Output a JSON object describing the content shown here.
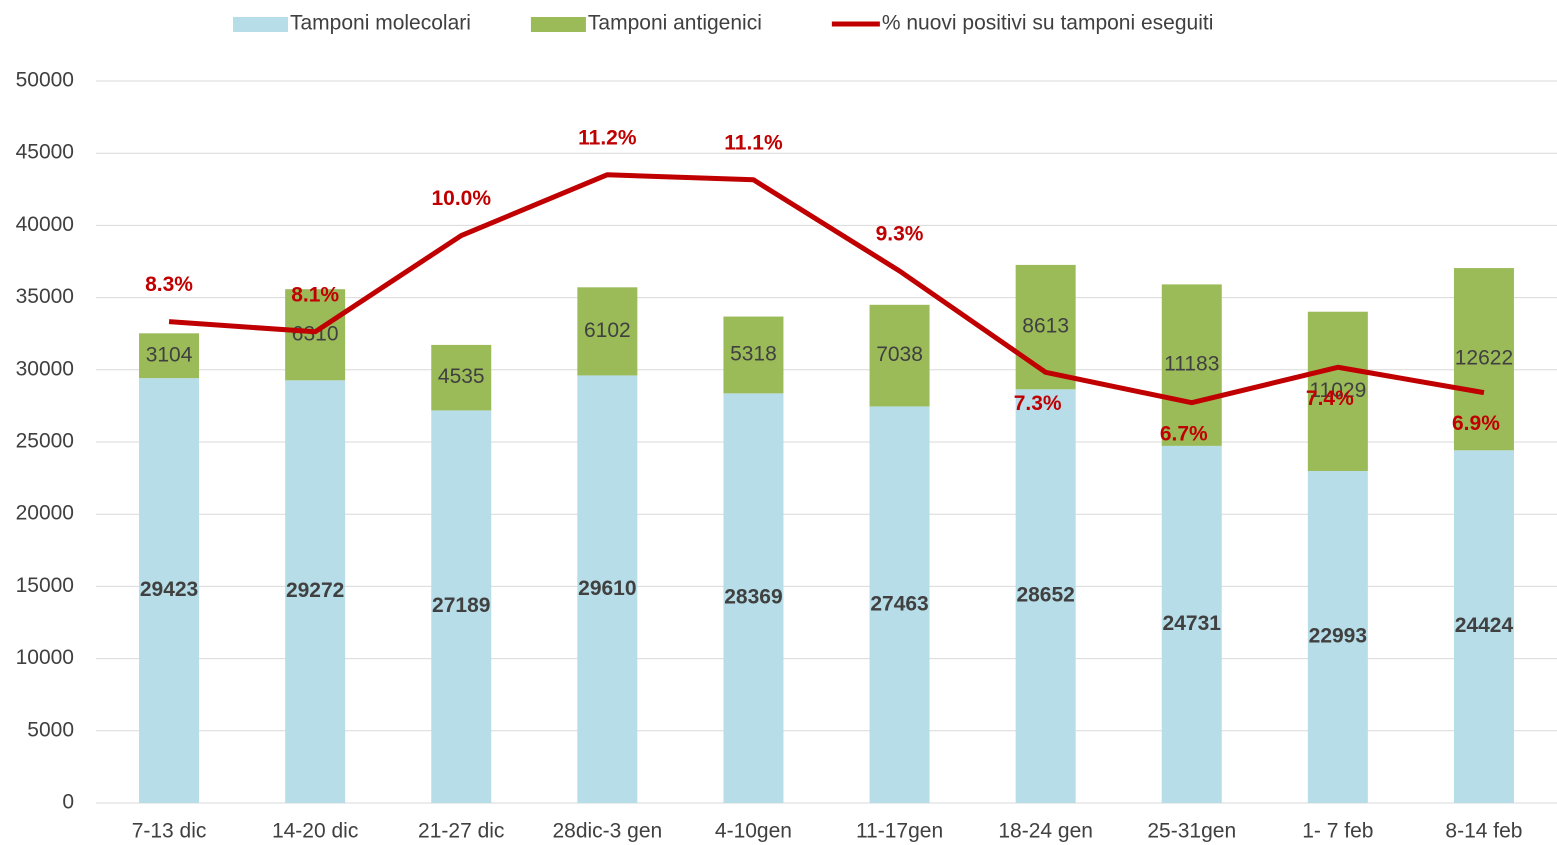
{
  "chart_data": {
    "type": "bar",
    "stacked": true,
    "categories": [
      "7-13 dic",
      "14-20 dic",
      "21-27 dic",
      "28dic-3 gen",
      "4-10gen",
      "11-17gen",
      "18-24 gen",
      "25-31gen",
      "1- 7 feb",
      "8-14 feb"
    ],
    "series": [
      {
        "name": "Tamponi molecolari",
        "color": "#b7dde8",
        "values": [
          29423,
          29272,
          27189,
          29610,
          28369,
          27463,
          28652,
          24731,
          22993,
          24424
        ]
      },
      {
        "name": "Tamponi antigenici",
        "color": "#9bbb59",
        "values": [
          3104,
          6310,
          4535,
          6102,
          5318,
          7038,
          8613,
          11183,
          11029,
          12622
        ]
      },
      {
        "name": "% nuovi positivi su tamponi eseguiti",
        "type": "line",
        "axis": "y2",
        "color": "#c00000",
        "values": [
          8.3,
          8.1,
          10.0,
          11.2,
          11.1,
          9.3,
          7.3,
          6.7,
          7.4,
          6.9
        ],
        "value_labels": [
          "8.3%",
          "8.1%",
          "10.0%",
          "11.2%",
          "11.1%",
          "9.3%",
          "7.3%",
          "6.7%",
          "7.4%",
          "6.9%"
        ]
      }
    ],
    "ylim": [
      0,
      50000
    ],
    "yticks": [
      0,
      5000,
      10000,
      15000,
      20000,
      25000,
      30000,
      35000,
      40000,
      45000,
      50000
    ],
    "y2lim": [
      -1.2,
      13.05
    ],
    "grid": true,
    "legend": "top"
  }
}
